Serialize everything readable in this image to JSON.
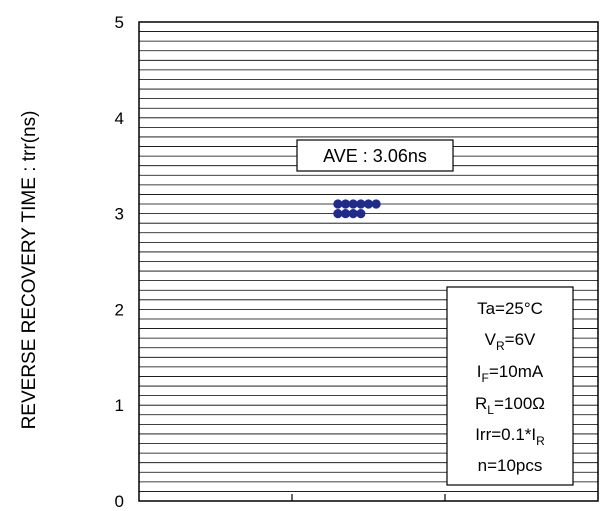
{
  "chart_data": {
    "type": "scatter",
    "title": "",
    "xlabel": "",
    "ylabel": "REVERSE RECOVERY TIME : trr(ns)",
    "ylim": [
      0,
      5
    ],
    "y_major_ticks": [
      "0",
      "1",
      "2",
      "3",
      "4",
      "5"
    ],
    "y_minor_step": 0.1,
    "x_segments": 3,
    "grid": true,
    "series": [
      {
        "points": [
          {
            "x": 1.3,
            "y": 3.1
          },
          {
            "x": 1.35,
            "y": 3.1
          },
          {
            "x": 1.4,
            "y": 3.1
          },
          {
            "x": 1.45,
            "y": 3.1
          },
          {
            "x": 1.5,
            "y": 3.1
          },
          {
            "x": 1.55,
            "y": 3.1
          },
          {
            "x": 1.3,
            "y": 3.0
          },
          {
            "x": 1.35,
            "y": 3.0
          },
          {
            "x": 1.4,
            "y": 3.0
          },
          {
            "x": 1.45,
            "y": 3.0
          }
        ]
      }
    ],
    "marker_color": "#1f2a8c",
    "annotation_average": "AVE : 3.06ns",
    "conditions": {
      "ta": "Ta=25°C",
      "vr_main": "V",
      "vr_sub": "R",
      "vr_rest": "=6V",
      "if_main": "I",
      "if_sub": "F",
      "if_rest": "=10mA",
      "rl_main": "R",
      "rl_sub": "L",
      "rl_rest": "=100Ω",
      "irr_main": "Irr=0.1*I",
      "irr_sub": "R",
      "n": "n=10pcs"
    }
  }
}
